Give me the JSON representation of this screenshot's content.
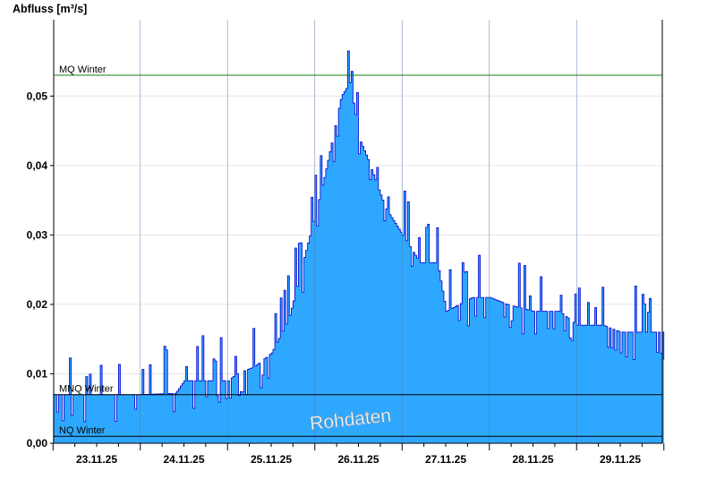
{
  "chart_data": {
    "type": "area",
    "ylabel": "Abfluss [m³/s]",
    "ylim": [
      0,
      0.061
    ],
    "yticks": [
      {
        "value": 0.0,
        "label": "0,00"
      },
      {
        "value": 0.01,
        "label": "0,01"
      },
      {
        "value": 0.02,
        "label": "0,02"
      },
      {
        "value": 0.03,
        "label": "0,03"
      },
      {
        "value": 0.04,
        "label": "0,04"
      },
      {
        "value": 0.05,
        "label": "0,05"
      }
    ],
    "x_days": [
      "23.11.25",
      "24.11.25",
      "25.11.25",
      "26.11.25",
      "27.11.25",
      "28.11.25",
      "29.11.25"
    ],
    "xlim_days": [
      -0.5,
      6.5
    ],
    "grid": true,
    "reference_lines": [
      {
        "label": "MQ Winter",
        "value": 0.053,
        "color": "#1a7a1a"
      },
      {
        "label": "MNQ Winter",
        "value": 0.007,
        "color": "#000000"
      },
      {
        "label": "NQ Winter",
        "value": 0.001,
        "color": "#000000"
      }
    ],
    "annotation": "Rohdaten",
    "series": [
      {
        "fill_color": "#2ea8ff",
        "line_color": "#0000cc",
        "x_day": [
          -0.5,
          0.0,
          0.5,
          0.9,
          1.0,
          1.5,
          1.6,
          1.8,
          2.0,
          2.2,
          2.3,
          2.4,
          2.5,
          2.6,
          2.7,
          2.8,
          2.9,
          3.0,
          3.1,
          3.3,
          3.5,
          3.7,
          3.9,
          4.0,
          4.3,
          4.5,
          4.7,
          5.0,
          5.3,
          5.5,
          5.8,
          6.0,
          6.3,
          6.5
        ],
        "y": [
          0.007,
          0.007,
          0.007,
          0.0072,
          0.009,
          0.009,
          0.01,
          0.011,
          0.013,
          0.018,
          0.023,
          0.028,
          0.033,
          0.038,
          0.044,
          0.05,
          0.052,
          0.044,
          0.041,
          0.034,
          0.03,
          0.026,
          0.026,
          0.019,
          0.021,
          0.021,
          0.02,
          0.019,
          0.019,
          0.017,
          0.017,
          0.016,
          0.016,
          0.016
        ]
      }
    ]
  }
}
